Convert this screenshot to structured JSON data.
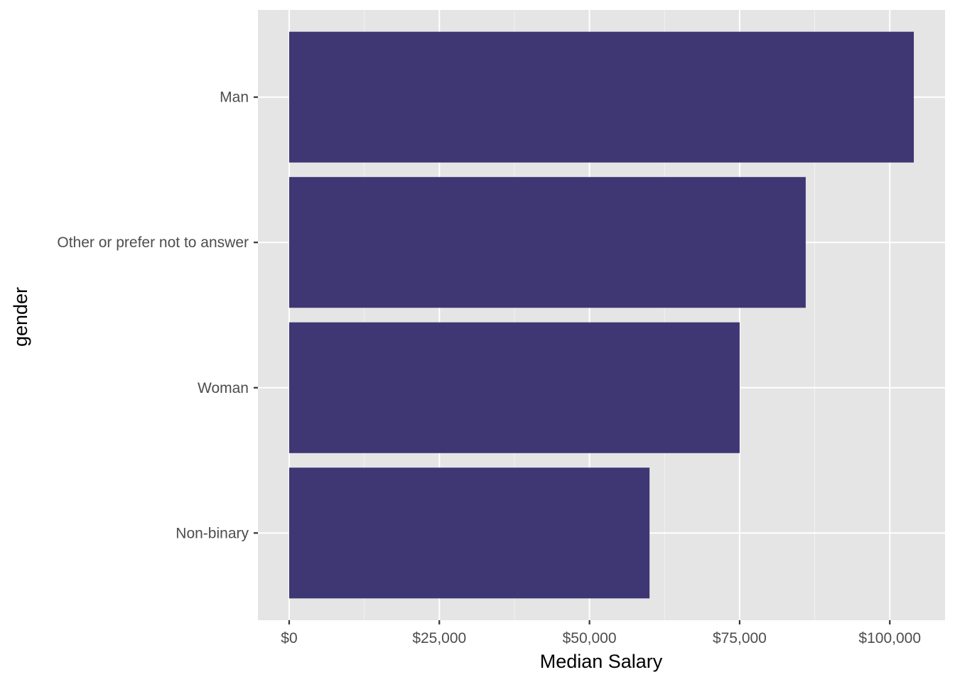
{
  "chart_data": {
    "type": "bar",
    "orientation": "horizontal",
    "categories": [
      "Man",
      "Other or prefer not to answer",
      "Woman",
      "Non-binary"
    ],
    "values": [
      104000,
      86000,
      75000,
      60000
    ],
    "xlabel": "Median Salary",
    "ylabel": "gender",
    "x_ticks": [
      0,
      25000,
      50000,
      75000,
      100000
    ],
    "x_tick_labels": [
      "$0",
      "$25,000",
      "$50,000",
      "$75,000",
      "$100,000"
    ],
    "xlim": [
      -5200,
      109200
    ],
    "grid": true,
    "legend": "none",
    "colors": {
      "bar": "#3b3371",
      "panel_background": "#e5e5e5",
      "gridline": "#ffffff"
    }
  }
}
